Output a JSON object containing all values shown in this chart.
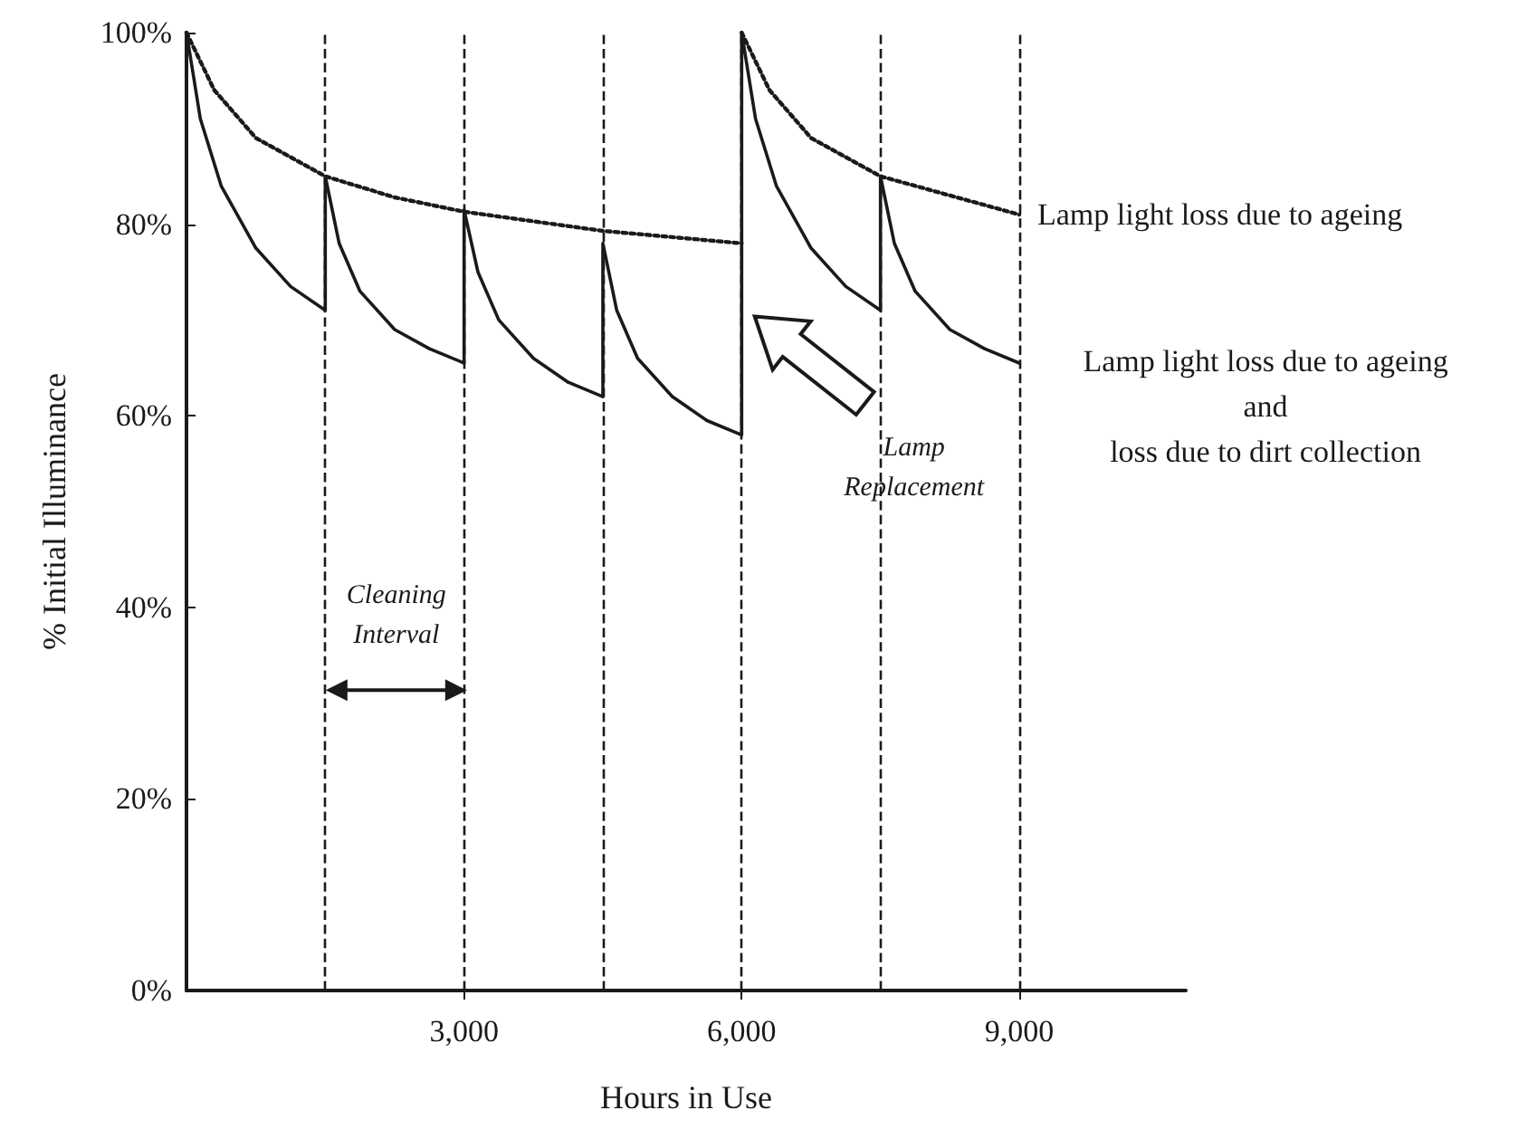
{
  "chart_data": {
    "type": "line",
    "xlabel": "Hours in Use",
    "ylabel": "% Initial Illuminance",
    "xlim": [
      0,
      10800
    ],
    "xticks": [
      {
        "value": 3000,
        "label": "3,000"
      },
      {
        "value": 6000,
        "label": "6,000"
      },
      {
        "value": 9000,
        "label": "9,000"
      }
    ],
    "ylim": [
      0,
      100
    ],
    "yticks": [
      {
        "value": 0,
        "label": "0%"
      },
      {
        "value": 20,
        "label": "20%"
      },
      {
        "value": 40,
        "label": "40%"
      },
      {
        "value": 60,
        "label": "60%"
      },
      {
        "value": 80,
        "label": "80%"
      },
      {
        "value": 100,
        "label": "100%"
      }
    ],
    "grid": false,
    "legend": false,
    "marker": "none",
    "series": [
      {
        "color": "#1a1a1a",
        "line_style": "dotted",
        "x": [
          0,
          300,
          750,
          1500,
          2250,
          3000,
          4500,
          6000
        ],
        "values": [
          100,
          94,
          89,
          85,
          82.8,
          81.3,
          79.3,
          78
        ]
      },
      {
        "name": "Lamp light loss due to ageing",
        "color": "#1a1a1a",
        "line_style": "dotted",
        "x": [
          6000,
          6300,
          6750,
          7500,
          8250,
          9000
        ],
        "values": [
          100,
          94,
          89,
          85,
          83,
          81
        ]
      },
      {
        "name": "Lamp light loss due to ageing\nand\nloss due to dirt collection",
        "color": "#1a1a1a",
        "line_style": "solid",
        "x": [
          0,
          150,
          375,
          750,
          1125,
          1500,
          1500,
          1650,
          1875,
          2250,
          2625,
          3000,
          3000,
          3150,
          3375,
          3750,
          4125,
          4500,
          4500,
          4650,
          4875,
          5250,
          5625,
          6000,
          6000,
          6150,
          6375,
          6750,
          7125,
          7500,
          7500,
          7650,
          7875,
          8250,
          8625,
          9000
        ],
        "values": [
          100,
          91,
          84,
          77.5,
          73.5,
          71,
          85,
          78,
          73,
          69,
          67,
          65.5,
          81.5,
          75,
          70,
          66,
          63.5,
          62,
          78,
          71,
          66,
          62,
          59.5,
          58,
          100,
          91,
          84,
          77.5,
          73.5,
          71,
          85,
          78,
          73,
          69,
          67,
          65.5
        ]
      }
    ],
    "ref_lines": [
      {
        "axis": "x",
        "value": 1500,
        "color": "#1a1a1a",
        "line_style": "dashed"
      },
      {
        "axis": "x",
        "value": 3000,
        "color": "#1a1a1a",
        "line_style": "dashed"
      },
      {
        "axis": "x",
        "value": 4500,
        "color": "#1a1a1a",
        "line_style": "dashed"
      },
      {
        "axis": "x",
        "value": 6000,
        "color": "#1a1a1a",
        "line_style": "dashed"
      },
      {
        "axis": "x",
        "value": 7500,
        "color": "#1a1a1a",
        "line_style": "dashed"
      },
      {
        "axis": "x",
        "value": 9000,
        "color": "#1a1a1a",
        "line_style": "dashed"
      }
    ],
    "annotations": [
      "Cleaning\nInterval",
      "Lamp\nReplacement"
    ]
  }
}
